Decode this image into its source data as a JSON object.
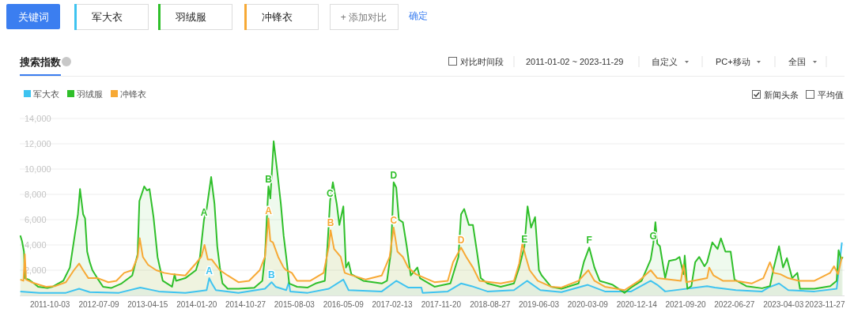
{
  "chart_data": {
    "type": "area",
    "title": "搜索指数",
    "annotations": [
      "关键词",
      "+ 添加对比",
      "确定",
      "对比时间段",
      "2011-01-02 ~ 2023-11-29",
      "自定义",
      "PC+移动",
      "全国",
      "新闻头条",
      "平均值",
      {
        "text": "A",
        "x": "2014-03-03",
        "y": 6000
      },
      {
        "text": "B",
        "x": "2015-03-07",
        "y": 8630
      },
      {
        "text": "A",
        "x": "2015-03-07",
        "y": 6100
      },
      {
        "text": "A",
        "x": "2014-04-02",
        "y": 1370
      },
      {
        "text": "B",
        "x": "2015-03-25",
        "y": 1050
      },
      {
        "text": "C",
        "x": "2016-02-23",
        "y": 7470
      },
      {
        "text": "B",
        "x": "2016-02-26",
        "y": 5160
      },
      {
        "text": "D",
        "x": "2017-02-21",
        "y": 8950
      },
      {
        "text": "C",
        "x": "2017-02-21",
        "y": 5370
      },
      {
        "text": "D",
        "x": "2018-03-14",
        "y": 3790
      },
      {
        "text": "E",
        "x": "2019-03-12",
        "y": 3890
      },
      {
        "text": "F",
        "x": "2020-03-17",
        "y": 3790
      },
      {
        "text": "G",
        "x": "2021-03-19",
        "y": 4100
      }
    ],
    "xlim": [
      "2011-04-13",
      "2024-03-18"
    ],
    "xticks": [
      "2011-10-03",
      "2012-07-09",
      "2013-04-15",
      "2014-01-20",
      "2014-10-27",
      "2015-08-03",
      "2016-05-09",
      "2017-02-13",
      "2017-11-20",
      "2018-08-27",
      "2019-06-03",
      "2020-03-09",
      "2020-12-14",
      "2021-09-20",
      "2022-06-27",
      "2023-04-03",
      "2023-11-27"
    ],
    "ylim": [
      0,
      14000
    ],
    "yticks": [
      {
        "value": 2000,
        "label": "2,000"
      },
      {
        "value": 4000,
        "label": "4,000"
      },
      {
        "value": 6000,
        "label": "6,000"
      },
      {
        "value": 8000,
        "label": "8,000"
      },
      {
        "value": 10000,
        "label": "10,000"
      },
      {
        "value": 12000,
        "label": "12,000"
      },
      {
        "value": 14000,
        "label": "14,000"
      }
    ],
    "grid": "y",
    "legend": "top left",
    "marker": "none",
    "line_style": "solid",
    "series": [
      {
        "name": "军大衣",
        "color": "#3ec3f0",
        "x": [
          "2011-04-16",
          "2011-08-03",
          "2012-01-02",
          "2012-03-18",
          "2012-05-18",
          "2012-11-01",
          "2013-03-03",
          "2013-06-17",
          "2013-11-16",
          "2014-03-18",
          "2014-04-02",
          "2014-04-17",
          "2014-05-10",
          "2014-09-16",
          "2015-02-15",
          "2015-03-25",
          "2015-04-17",
          "2015-06-17",
          "2015-07-02",
          "2015-07-10",
          "2015-10-18",
          "2016-02-16",
          "2016-05-09",
          "2016-06-08",
          "2016-12-15",
          "2017-03-08",
          "2017-05-15",
          "2017-07-30",
          "2017-08-06",
          "2017-12-28",
          "2018-03-14",
          "2018-05-13",
          "2018-08-12",
          "2019-01-11",
          "2019-03-27",
          "2019-06-11",
          "2019-10-10",
          "2020-03-09",
          "2020-06-15",
          "2020-11-12",
          "2021-03-04",
          "2021-04-11",
          "2021-05-26",
          "2022-01-21",
          "2022-03-07",
          "2022-07-05",
          "2022-12-02",
          "2023-01-08",
          "2023-03-09",
          "2023-05-01",
          "2023-09-28",
          "2024-02-02",
          "2024-03-03"
        ],
        "values": [
          320,
          210,
          210,
          530,
          270,
          210,
          630,
          320,
          210,
          420,
          1370,
          950,
          420,
          210,
          530,
          1050,
          690,
          420,
          1050,
          320,
          210,
          530,
          1260,
          420,
          320,
          1160,
          630,
          630,
          210,
          320,
          950,
          740,
          320,
          420,
          1160,
          420,
          270,
          840,
          320,
          320,
          1160,
          840,
          320,
          740,
          630,
          420,
          320,
          630,
          950,
          420,
          320,
          530,
          4200
        ]
      },
      {
        "name": "羽绒服",
        "color": "#2fbf2a",
        "x": [
          "2011-04-16",
          "2011-04-26",
          "2011-05-07",
          "2011-05-12",
          "2011-06-03",
          "2011-07-04",
          "2011-07-27",
          "2011-09-18",
          "2011-10-18",
          "2011-12-18",
          "2012-01-25",
          "2012-02-17",
          "2012-03-11",
          "2012-03-23",
          "2012-04-10",
          "2012-04-21",
          "2012-05-03",
          "2012-05-18",
          "2012-06-02",
          "2012-06-30",
          "2012-08-02",
          "2012-09-17",
          "2012-11-16",
          "2013-01-16",
          "2013-02-16",
          "2013-02-26",
          "2013-03-26",
          "2013-04-10",
          "2013-04-25",
          "2013-05-18",
          "2013-06-10",
          "2013-07-10",
          "2013-09-01",
          "2013-09-16",
          "2013-09-24",
          "2013-11-16",
          "2014-01-16",
          "2014-02-08",
          "2014-03-03",
          "2014-03-18",
          "2014-04-13",
          "2014-05-02",
          "2014-05-18",
          "2014-06-02",
          "2014-06-17",
          "2014-07-17",
          "2014-09-16",
          "2014-12-16",
          "2015-01-31",
          "2015-02-15",
          "2015-03-07",
          "2015-03-18",
          "2015-04-06",
          "2015-04-25",
          "2015-05-17",
          "2015-06-02",
          "2015-06-17",
          "2015-07-04",
          "2015-08-18",
          "2015-10-18",
          "2015-12-02",
          "2016-01-24",
          "2016-02-08",
          "2016-02-23",
          "2016-03-10",
          "2016-04-01",
          "2016-04-16",
          "2016-05-09",
          "2016-05-24",
          "2016-06-08",
          "2016-06-24",
          "2016-08-31",
          "2016-12-15",
          "2017-01-14",
          "2017-02-06",
          "2017-02-21",
          "2017-03-08",
          "2017-03-23",
          "2017-04-15",
          "2017-05-07",
          "2017-05-30",
          "2017-07-07",
          "2017-07-22",
          "2017-10-13",
          "2018-01-12",
          "2018-02-27",
          "2018-03-14",
          "2018-04-01",
          "2018-04-28",
          "2018-05-21",
          "2018-06-13",
          "2018-07-05",
          "2018-08-12",
          "2018-10-27",
          "2019-01-11",
          "2019-02-10",
          "2019-03-12",
          "2019-03-30",
          "2019-04-19",
          "2019-05-12",
          "2019-06-03",
          "2019-06-19",
          "2019-08-11",
          "2019-10-10",
          "2020-01-16",
          "2020-02-15",
          "2020-03-17",
          "2020-04-16",
          "2020-05-16",
          "2020-07-30",
          "2020-10-05",
          "2020-11-12",
          "2021-01-11",
          "2021-03-04",
          "2021-03-19",
          "2021-03-31",
          "2021-04-11",
          "2021-04-26",
          "2021-05-26",
          "2021-06-17",
          "2021-07-25",
          "2021-08-16",
          "2021-09-08",
          "2021-09-15",
          "2021-09-30",
          "2021-10-23",
          "2021-11-14",
          "2021-12-07",
          "2022-01-06",
          "2022-01-21",
          "2022-02-20",
          "2022-03-22",
          "2022-04-10",
          "2022-05-06",
          "2022-06-05",
          "2022-06-27",
          "2022-09-03",
          "2022-12-02",
          "2023-01-16",
          "2023-02-07",
          "2023-03-09",
          "2023-04-01",
          "2023-04-23",
          "2023-05-23",
          "2023-06-22",
          "2023-07-07",
          "2023-09-28",
          "2023-12-27",
          "2024-02-02",
          "2024-02-13",
          "2024-02-28",
          "2024-03-08"
        ],
        "values": [
          4740,
          4300,
          3470,
          1370,
          1260,
          950,
          690,
          590,
          690,
          1160,
          2210,
          4320,
          6420,
          8420,
          6420,
          6100,
          3470,
          2630,
          2000,
          1370,
          690,
          590,
          950,
          1580,
          3260,
          7470,
          8630,
          8310,
          8420,
          6200,
          3050,
          1160,
          690,
          1680,
          1160,
          1370,
          2000,
          3050,
          6000,
          6840,
          9370,
          7260,
          3890,
          2210,
          950,
          530,
          530,
          610,
          1160,
          3050,
          8630,
          7680,
          12200,
          10000,
          7260,
          4740,
          3050,
          950,
          690,
          630,
          950,
          1160,
          3890,
          7470,
          8950,
          7260,
          5580,
          7050,
          2210,
          2630,
          1680,
          1160,
          950,
          1160,
          3470,
          8950,
          8530,
          6000,
          5790,
          3890,
          1580,
          2210,
          1370,
          690,
          950,
          3050,
          6420,
          6840,
          5580,
          5580,
          3470,
          1370,
          950,
          690,
          950,
          2210,
          3890,
          7050,
          5370,
          6200,
          2000,
          1580,
          690,
          530,
          950,
          2630,
          3790,
          2210,
          1160,
          840,
          210,
          630,
          1160,
          2840,
          4100,
          5790,
          4100,
          3890,
          1370,
          2740,
          2840,
          3050,
          1680,
          3150,
          530,
          740,
          2630,
          3050,
          2310,
          2630,
          4200,
          3680,
          4520,
          3470,
          3470,
          1260,
          740,
          570,
          740,
          2210,
          3890,
          2210,
          2950,
          1370,
          1790,
          530,
          530,
          740,
          1160,
          3580,
          2840,
          3050
        ]
      },
      {
        "name": "冲锋衣",
        "color": "#f7a935",
        "x": [
          "2011-04-16",
          "2011-05-04",
          "2011-05-12",
          "2011-05-19",
          "2011-06-19",
          "2011-08-03",
          "2011-09-10",
          "2011-11-02",
          "2012-01-02",
          "2012-02-17",
          "2012-03-18",
          "2012-04-10",
          "2012-05-10",
          "2012-07-03",
          "2012-09-01",
          "2012-10-17",
          "2012-12-01",
          "2013-01-16",
          "2013-02-16",
          "2013-02-28",
          "2013-03-18",
          "2013-04-17",
          "2013-06-02",
          "2013-07-18",
          "2013-09-01",
          "2013-11-16",
          "2014-01-08",
          "2014-02-15",
          "2014-03-06",
          "2014-03-25",
          "2014-04-17",
          "2014-06-02",
          "2014-07-17",
          "2014-09-16",
          "2014-11-16",
          "2015-01-16",
          "2015-02-15",
          "2015-03-07",
          "2015-03-18",
          "2015-04-02",
          "2015-05-02",
          "2015-06-02",
          "2015-06-17",
          "2015-07-19",
          "2015-08-18",
          "2015-11-02",
          "2016-01-17",
          "2016-02-16",
          "2016-02-26",
          "2016-03-17",
          "2016-04-24",
          "2016-05-17",
          "2016-06-08",
          "2016-09-15",
          "2016-12-15",
          "2017-01-29",
          "2017-02-21",
          "2017-03-15",
          "2017-04-15",
          "2017-05-15",
          "2017-06-29",
          "2017-10-13",
          "2017-12-28",
          "2018-01-27",
          "2018-03-14",
          "2018-04-13",
          "2018-05-21",
          "2018-06-28",
          "2018-10-27",
          "2019-01-11",
          "2019-02-10",
          "2019-02-28",
          "2019-03-20",
          "2019-04-11",
          "2019-05-27",
          "2019-08-11",
          "2019-10-10",
          "2020-01-16",
          "2020-03-12",
          "2020-04-16",
          "2020-06-15",
          "2020-10-05",
          "2020-12-27",
          "2021-03-04",
          "2021-04-11",
          "2021-08-24",
          "2021-09-08",
          "2021-09-23",
          "2022-01-21",
          "2022-02-02",
          "2022-02-27",
          "2022-04-21",
          "2022-07-05",
          "2022-10-03",
          "2022-12-09",
          "2023-01-16",
          "2023-02-07",
          "2023-03-17",
          "2023-05-01",
          "2023-06-30",
          "2023-09-28",
          "2023-12-27",
          "2024-01-18",
          "2024-02-10",
          "2024-03-03"
        ],
        "values": [
          1260,
          1160,
          3260,
          1260,
          1050,
          840,
          690,
          740,
          1050,
          2000,
          2530,
          2000,
          1370,
          1370,
          1050,
          1160,
          1790,
          2000,
          3050,
          4530,
          3050,
          2420,
          2000,
          1790,
          1680,
          1580,
          2420,
          3050,
          4000,
          2840,
          2840,
          2000,
          1580,
          1050,
          1160,
          2000,
          3050,
          6100,
          4320,
          4200,
          3050,
          2210,
          2000,
          1790,
          1160,
          1160,
          1790,
          3890,
          5160,
          3680,
          3050,
          1790,
          1680,
          1260,
          1580,
          3050,
          5370,
          3470,
          3050,
          2210,
          1680,
          1050,
          1160,
          2630,
          3790,
          3050,
          2210,
          1160,
          950,
          1160,
          2530,
          4100,
          3050,
          2000,
          1160,
          690,
          630,
          1160,
          2000,
          1160,
          690,
          420,
          1160,
          2000,
          1370,
          1160,
          2420,
          1050,
          1370,
          2210,
          1580,
          1160,
          1160,
          950,
          1370,
          2630,
          1790,
          1680,
          1370,
          1160,
          1160,
          1790,
          2310,
          1680,
          3050
        ]
      }
    ]
  }
}
